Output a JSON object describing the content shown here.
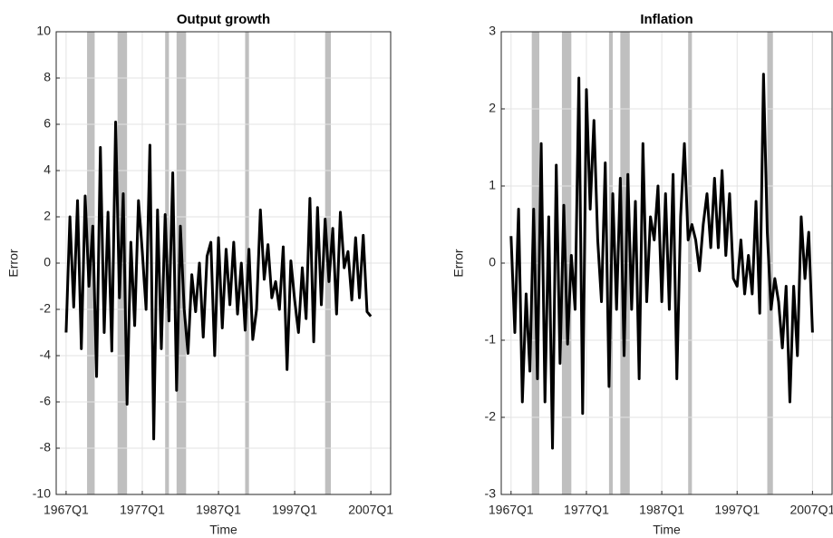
{
  "chart_data": [
    {
      "type": "line",
      "title": "Output growth",
      "x_label": "Time",
      "y_label": "Error",
      "x": [
        1967,
        1967.5,
        1968,
        1968.5,
        1969,
        1969.5,
        1970,
        1970.5,
        1971,
        1971.5,
        1972,
        1972.5,
        1973,
        1973.5,
        1974,
        1974.5,
        1975,
        1975.5,
        1976,
        1976.5,
        1977,
        1977.5,
        1978,
        1978.5,
        1979,
        1979.5,
        1980,
        1980.5,
        1981,
        1981.5,
        1982,
        1982.5,
        1983,
        1983.5,
        1984,
        1984.5,
        1985,
        1985.5,
        1986,
        1986.5,
        1987,
        1987.5,
        1988,
        1988.5,
        1989,
        1989.5,
        1990,
        1990.5,
        1991,
        1991.5,
        1992,
        1992.5,
        1993,
        1993.5,
        1994,
        1994.5,
        1995,
        1995.5,
        1996,
        1996.5,
        1997,
        1997.5,
        1998,
        1998.5,
        1999,
        1999.5,
        2000,
        2000.5,
        2001,
        2001.5,
        2002,
        2002.5,
        2003,
        2003.5,
        2004,
        2004.5,
        2005,
        2005.5,
        2006,
        2006.5,
        2007
      ],
      "series": [
        {
          "name": "Output growth",
          "color": "#000000",
          "values": [
            -3,
            2,
            -1.9,
            2.7,
            -3.7,
            2.9,
            -1,
            1.6,
            -4.9,
            5,
            -3,
            2.2,
            -3.8,
            6.1,
            -1.5,
            3,
            -6.1,
            0.9,
            -2.7,
            2.7,
            0.5,
            -2,
            5.1,
            -7.6,
            2.3,
            -3.7,
            2.1,
            -2.5,
            3.9,
            -5.5,
            1.6,
            -2,
            -3.9,
            -0.5,
            -2.1,
            0,
            -3.2,
            0.3,
            0.9,
            -4,
            1.1,
            -2.8,
            0.6,
            -1.8,
            0.9,
            -2.2,
            0,
            -2.9,
            0.6,
            -3.3,
            -2,
            2.3,
            -0.7,
            0.8,
            -1.5,
            -0.8,
            -2,
            0.7,
            -4.6,
            0.1,
            -1.6,
            -3,
            -0.2,
            -2.4,
            2.8,
            -3.4,
            2.4,
            -1.8,
            1.9,
            -0.8,
            1.5,
            -2.2,
            2.2,
            -0.2,
            0.5,
            -1.6,
            1.1,
            -1.5,
            1.2,
            -2.1,
            -2.3
          ]
        }
      ],
      "shaded": [
        [
          1969.75,
          1970.75
        ],
        [
          1973.75,
          1975
        ],
        [
          1980,
          1980.5
        ],
        [
          1981.5,
          1982.75
        ],
        [
          1990.5,
          1991
        ],
        [
          2001,
          2001.75
        ]
      ],
      "shade_color": "#bfbfbf",
      "xlim": [
        1965.7,
        2009.6
      ],
      "xticks": [
        {
          "value": 1967,
          "label": "1967Q1"
        },
        {
          "value": 1977,
          "label": "1977Q1"
        },
        {
          "value": 1987,
          "label": "1987Q1"
        },
        {
          "value": 1997,
          "label": "1997Q1"
        },
        {
          "value": 2007,
          "label": "2007Q1"
        }
      ],
      "ylim": [
        -10,
        10
      ],
      "yticks": [
        -10,
        -8,
        -6,
        -4,
        -2,
        0,
        2,
        4,
        6,
        8,
        10
      ],
      "grid": true
    },
    {
      "type": "line",
      "title": "Inflation",
      "x_label": "Time",
      "y_label": "Error",
      "x": [
        1967,
        1967.5,
        1968,
        1968.5,
        1969,
        1969.5,
        1970,
        1970.5,
        1971,
        1971.5,
        1972,
        1972.5,
        1973,
        1973.5,
        1974,
        1974.5,
        1975,
        1975.5,
        1976,
        1976.5,
        1977,
        1977.5,
        1978,
        1978.5,
        1979,
        1979.5,
        1980,
        1980.5,
        1981,
        1981.5,
        1982,
        1982.5,
        1983,
        1983.5,
        1984,
        1984.5,
        1985,
        1985.5,
        1986,
        1986.5,
        1987,
        1987.5,
        1988,
        1988.5,
        1989,
        1989.5,
        1990,
        1990.5,
        1991,
        1991.5,
        1992,
        1992.5,
        1993,
        1993.5,
        1994,
        1994.5,
        1995,
        1995.5,
        1996,
        1996.5,
        1997,
        1997.5,
        1998,
        1998.5,
        1999,
        1999.5,
        2000,
        2000.5,
        2001,
        2001.5,
        2002,
        2002.5,
        2003,
        2003.5,
        2004,
        2004.5,
        2005,
        2005.5,
        2006,
        2006.5,
        2007
      ],
      "series": [
        {
          "name": "Inflation",
          "color": "#000000",
          "values": [
            0.35,
            -0.9,
            0.7,
            -1.8,
            -0.4,
            -1.4,
            0.7,
            -1.5,
            1.55,
            -1.8,
            0.6,
            -2.4,
            1.27,
            -1.3,
            0.75,
            -1.05,
            0.1,
            -0.6,
            2.4,
            -1.95,
            2.25,
            0.7,
            1.85,
            0.3,
            -0.5,
            1.3,
            -1.6,
            0.9,
            -0.6,
            1.1,
            -1.2,
            1.15,
            -0.6,
            0.8,
            -1.5,
            1.55,
            -0.5,
            0.6,
            0.3,
            1.0,
            -0.5,
            0.9,
            -0.6,
            1.15,
            -1.5,
            0.6,
            1.55,
            0.3,
            0.5,
            0.3,
            -0.1,
            0.5,
            0.9,
            0.2,
            1.1,
            0.2,
            1.2,
            0.1,
            0.9,
            -0.2,
            -0.3,
            0.3,
            -0.4,
            0.1,
            -0.4,
            0.8,
            -0.65,
            2.45,
            0.4,
            -0.6,
            -0.2,
            -0.5,
            -1.1,
            -0.3,
            -1.8,
            -0.3,
            -1.2,
            0.6,
            -0.2,
            0.4,
            -0.9
          ]
        }
      ],
      "shaded": [
        [
          1969.75,
          1970.75
        ],
        [
          1973.75,
          1975
        ],
        [
          1980,
          1980.5
        ],
        [
          1981.5,
          1982.75
        ],
        [
          1990.5,
          1991
        ],
        [
          2001,
          2001.75
        ]
      ],
      "shade_color": "#bfbfbf",
      "xlim": [
        1965.7,
        2009.6
      ],
      "xticks": [
        {
          "value": 1967,
          "label": "1967Q1"
        },
        {
          "value": 1977,
          "label": "1977Q1"
        },
        {
          "value": 1987,
          "label": "1987Q1"
        },
        {
          "value": 1997,
          "label": "1997Q1"
        },
        {
          "value": 2007,
          "label": "2007Q1"
        }
      ],
      "ylim": [
        -3,
        3
      ],
      "yticks": [
        -3,
        -2,
        -1,
        0,
        1,
        2,
        3
      ],
      "grid": true
    }
  ]
}
